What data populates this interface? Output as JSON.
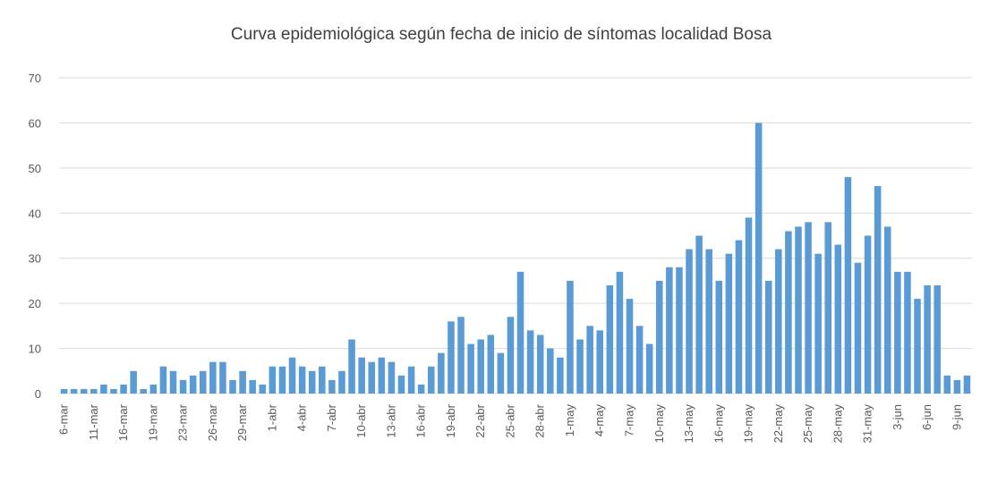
{
  "chart_data": {
    "type": "bar",
    "title": "Curva epidemiológica según fecha de inicio de síntomas  localidad Bosa",
    "categories": [
      "6-mar",
      null,
      null,
      "11-mar",
      null,
      null,
      "16-mar",
      null,
      null,
      "19-mar",
      null,
      null,
      "23-mar",
      null,
      null,
      "26-mar",
      null,
      null,
      "29-mar",
      null,
      null,
      "1-abr",
      null,
      null,
      "4-abr",
      null,
      null,
      "7-abr",
      null,
      null,
      "10-abr",
      null,
      null,
      "13-abr",
      null,
      null,
      "16-abr",
      null,
      null,
      "19-abr",
      null,
      null,
      "22-abr",
      null,
      null,
      "25-abr",
      null,
      null,
      "28-abr",
      null,
      null,
      "1-may",
      null,
      null,
      "4-may",
      null,
      null,
      "7-may",
      null,
      null,
      "10-may",
      null,
      null,
      "13-may",
      null,
      null,
      "16-may",
      null,
      null,
      "19-may",
      null,
      null,
      "22-may",
      null,
      null,
      "25-may",
      null,
      null,
      "28-may",
      null,
      null,
      "31-may",
      null,
      null,
      "3-jun",
      null,
      null,
      "6-jun",
      null,
      null,
      "9-jun",
      null
    ],
    "values": [
      1,
      1,
      1,
      1,
      2,
      1,
      2,
      5,
      1,
      2,
      6,
      5,
      3,
      4,
      5,
      7,
      7,
      3,
      5,
      3,
      2,
      6,
      6,
      8,
      6,
      5,
      6,
      3,
      5,
      12,
      8,
      7,
      8,
      7,
      4,
      6,
      2,
      6,
      9,
      16,
      17,
      11,
      12,
      13,
      9,
      17,
      27,
      14,
      13,
      10,
      8,
      25,
      12,
      15,
      14,
      24,
      27,
      21,
      15,
      11,
      25,
      28,
      28,
      32,
      35,
      32,
      25,
      31,
      34,
      39,
      60,
      25,
      32,
      36,
      37,
      38,
      31,
      38,
      33,
      48,
      29,
      35,
      46,
      37,
      27,
      27,
      21,
      24,
      24,
      4,
      3,
      4
    ],
    "color": "#5b9bd5",
    "ylim": [
      0,
      70
    ],
    "yticks": [
      0,
      10,
      20,
      30,
      40,
      50,
      60,
      70
    ],
    "grid": true
  }
}
